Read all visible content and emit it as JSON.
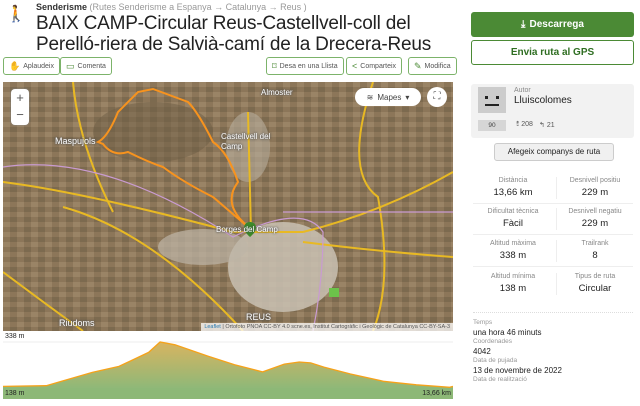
{
  "header": {
    "activity": "Senderisme",
    "breadcrumb": "(Rutes Senderisme a Espanya → Catalunya → Reus )",
    "title": "BAIX CAMP-Circular Reus-Castellvell-coll del Perelló-riera de Salvià-camí de la Drecera-Reus"
  },
  "actions": {
    "applaud": "Aplaudeix",
    "comment": "Comenta",
    "save_list": "Desa en una Llista",
    "share": "Comparteix",
    "edit": "Modifica"
  },
  "map": {
    "layers_label": "Mapes",
    "zoom_in": "+",
    "zoom_out": "−",
    "labels": [
      "Maspujols",
      "Castellvell del Camp",
      "Almoster",
      "Borges del Camp",
      "REUS",
      "Riudoms"
    ],
    "attribution_leaflet": "Leaflet",
    "attribution": "| Ortofoto PNOA CC-BY 4.0 scne.es, Institut Cartogràfic i Geològic de Catalunya CC-BY-SA-3",
    "route_color": "#f7931e"
  },
  "elevation": {
    "max_label": "338 m",
    "min_label": "138 m",
    "distance_label": "13,66 km",
    "profile_km": [
      0,
      1.31,
      2.71,
      3.52,
      4.42,
      4.77,
      5.22,
      6.23,
      7.03,
      7.88,
      8.54,
      8.99,
      9.34,
      9.74,
      10.55,
      11.55,
      12.55,
      13.56,
      13.66
    ],
    "profile_m": [
      145,
      148,
      206,
      232,
      293,
      338,
      326,
      276,
      239,
      208,
      242,
      251,
      247,
      229,
      199,
      167,
      152,
      141,
      145
    ]
  },
  "sidebar": {
    "download": "Descarrega",
    "send_gps": "Envia ruta al GPS",
    "author_label": "Autor",
    "author_name": "Lluiscolomes",
    "score": "90",
    "followers": "208",
    "following": "21",
    "add_companions": "Afegeix companys de ruta",
    "stats": [
      {
        "k": "Distància",
        "v": "13,66 km"
      },
      {
        "k": "Desnivell positiu",
        "v": "229 m"
      },
      {
        "k": "Dificultat tècnica",
        "v": "Fàcil"
      },
      {
        "k": "Desnivell negatiu",
        "v": "229 m"
      },
      {
        "k": "Altitud màxima",
        "v": "338 m"
      },
      {
        "k": "Trailrank",
        "v": "8"
      },
      {
        "k": "Altitud mínima",
        "v": "138 m"
      },
      {
        "k": "Tipus de ruta",
        "v": "Circular"
      }
    ],
    "info": [
      {
        "k": "Temps",
        "v": "una hora 46 minuts"
      },
      {
        "k": "Coordenades",
        "v": "4042"
      },
      {
        "k": "Data de pujada",
        "v": "13 de novembre de 2022"
      },
      {
        "k": "Data de realització",
        "v": ""
      }
    ]
  },
  "colors": {
    "accent": "#4b8a35",
    "route": "#f7931e",
    "road": "#e8b923"
  }
}
